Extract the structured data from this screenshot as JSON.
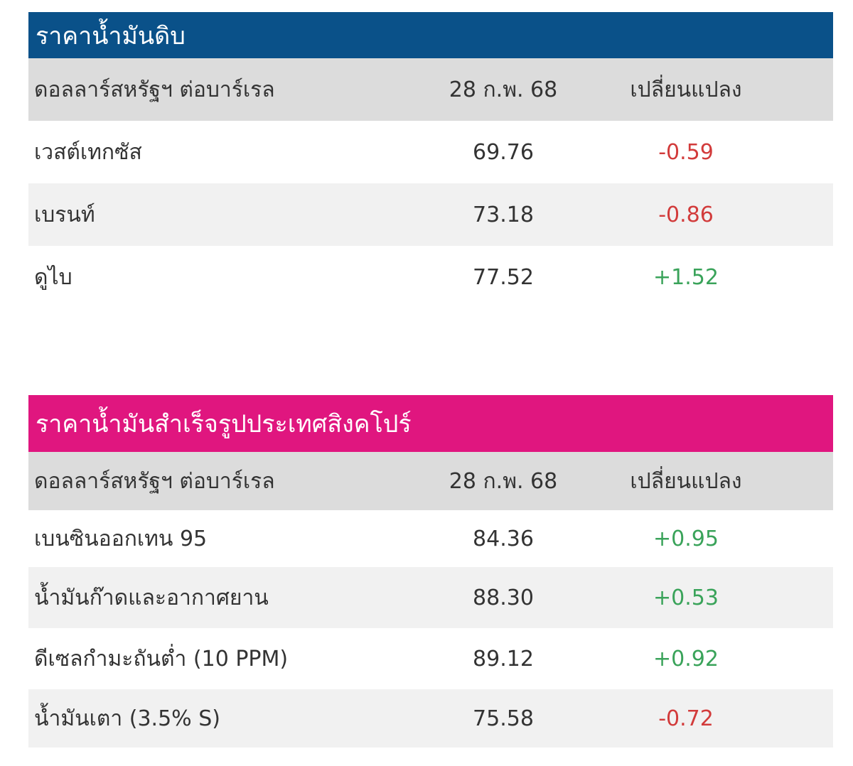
{
  "colors": {
    "crude_title_bg": "#0a5189",
    "refined_title_bg": "#e0167f",
    "negative": "#d23b3b",
    "positive": "#3aa35a"
  },
  "crude": {
    "title": "ราคาน้ำมันดิบ",
    "header": {
      "unit": "ดอลลาร์สหรัฐฯ ต่อบาร์เรล",
      "date": "28 ก.พ. 68",
      "change": "เปลี่ยนแปลง"
    },
    "rows": [
      {
        "name": "เวสต์เทกซัส",
        "price": "69.76",
        "change": "-0.59"
      },
      {
        "name": "เบรนท์",
        "price": "73.18",
        "change": "-0.86"
      },
      {
        "name": "ดูไบ",
        "price": "77.52",
        "change": "+1.52"
      }
    ]
  },
  "refined": {
    "title": "ราคาน้ำมันสำเร็จรูปประเทศสิงคโปร์",
    "header": {
      "unit": "ดอลลาร์สหรัฐฯ ต่อบาร์เรล",
      "date": "28 ก.พ. 68",
      "change": "เปลี่ยนแปลง"
    },
    "rows": [
      {
        "name": "เบนซินออกเทน 95",
        "price": "84.36",
        "change": "+0.95"
      },
      {
        "name": "น้ำมันก๊าดและอากาศยาน",
        "price": "88.30",
        "change": "+0.53"
      },
      {
        "name": "ดีเซลกำมะถันต่ำ (10 PPM)",
        "price": "89.12",
        "change": "+0.92"
      },
      {
        "name": "น้ำมันเตา (3.5% S)",
        "price": "75.58",
        "change": "-0.72"
      }
    ]
  }
}
